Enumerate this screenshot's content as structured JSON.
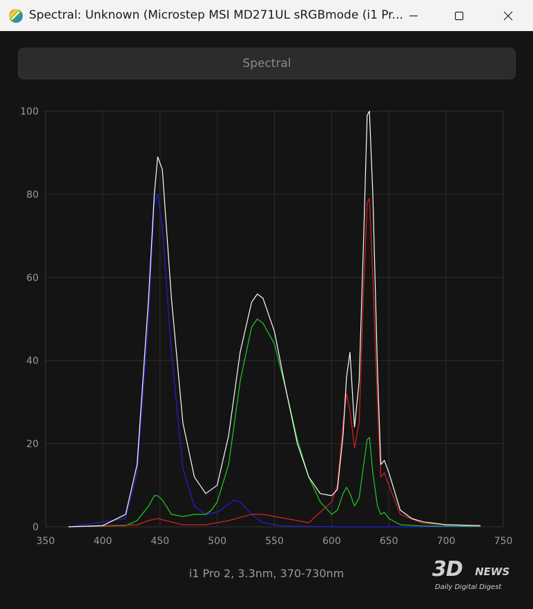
{
  "window": {
    "title": "Spectral: Unknown (Microstep MSI MD271UL sRGBmode (i1 Pr...",
    "mode_button": "Spectral",
    "footer": "i1 Pro 2, 3.3nm, 370-730nm"
  },
  "watermark": {
    "brand": "3D",
    "brand2": "NEWS",
    "tagline": "Daily Digital Digest"
  },
  "colors": {
    "white": "#ffffff",
    "red": "#e02020",
    "green": "#20d020",
    "blue": "#2020e0",
    "grid": "#2e2e2e",
    "axis_text": "#9a9a9a"
  },
  "chart_data": {
    "type": "line",
    "xlim": [
      350,
      750
    ],
    "ylim": [
      0,
      100
    ],
    "xticks": [
      350,
      400,
      450,
      500,
      550,
      600,
      650,
      700,
      750
    ],
    "yticks": [
      0,
      20,
      40,
      60,
      80,
      100
    ],
    "grid": true,
    "xlabel": "",
    "ylabel": "",
    "title": "",
    "series": [
      {
        "color": "#ffffff",
        "x": [
          370,
          400,
          420,
          430,
          440,
          445,
          448,
          452,
          460,
          470,
          480,
          490,
          500,
          510,
          520,
          530,
          535,
          540,
          550,
          560,
          570,
          580,
          590,
          600,
          605,
          610,
          613,
          616,
          620,
          624,
          628,
          631,
          633,
          636,
          640,
          643,
          646,
          650,
          660,
          670,
          680,
          700,
          730
        ],
        "y": [
          0,
          0.3,
          3,
          15,
          55,
          80,
          89,
          86,
          55,
          25,
          12,
          8,
          10,
          22,
          42,
          54,
          56,
          55,
          47,
          33,
          20,
          12,
          8,
          7.5,
          9,
          22,
          36,
          42,
          24,
          35,
          70,
          99,
          100,
          80,
          38,
          15,
          16,
          13,
          4,
          2,
          1.2,
          0.5,
          0.3
        ]
      },
      {
        "color": "#e02020",
        "x": [
          370,
          430,
          440,
          448,
          455,
          470,
          490,
          510,
          530,
          540,
          560,
          580,
          600,
          605,
          610,
          613,
          616,
          620,
          624,
          628,
          631,
          633,
          636,
          640,
          643,
          646,
          650,
          660,
          680,
          730
        ],
        "y": [
          0,
          0.5,
          1.5,
          2,
          1.5,
          0.5,
          0.5,
          1.5,
          3,
          3,
          2,
          1,
          6,
          10,
          25,
          32,
          28,
          19,
          25,
          58,
          78,
          79,
          60,
          30,
          12,
          13,
          10,
          3,
          0.8,
          0.2
        ]
      },
      {
        "color": "#20d020",
        "x": [
          370,
          420,
          430,
          440,
          445,
          448,
          452,
          460,
          470,
          480,
          490,
          495,
          500,
          510,
          520,
          530,
          535,
          540,
          550,
          560,
          570,
          580,
          590,
          600,
          605,
          610,
          613,
          616,
          620,
          624,
          628,
          631,
          633,
          636,
          640,
          643,
          646,
          650,
          660,
          680,
          730
        ],
        "y": [
          0,
          0.3,
          1.5,
          5,
          7.5,
          7.5,
          6.5,
          3,
          2.5,
          3,
          3,
          4,
          6,
          15,
          35,
          48,
          50,
          49,
          44,
          33,
          21,
          12,
          6,
          3,
          4,
          8,
          9.5,
          8,
          5,
          7,
          15,
          21,
          21.5,
          13,
          5,
          3,
          3.5,
          2,
          0.5,
          0.2,
          0.1
        ]
      },
      {
        "color": "#2020e0",
        "x": [
          370,
          420,
          430,
          440,
          445,
          448,
          452,
          460,
          470,
          480,
          490,
          500,
          510,
          515,
          520,
          530,
          540,
          550,
          560,
          580,
          600,
          730
        ],
        "y": [
          0,
          2,
          13,
          50,
          78,
          80,
          72,
          42,
          14,
          5,
          3,
          3.5,
          5.5,
          6.5,
          6,
          3,
          1,
          0.5,
          0.2,
          0.1,
          0,
          0
        ]
      }
    ]
  }
}
